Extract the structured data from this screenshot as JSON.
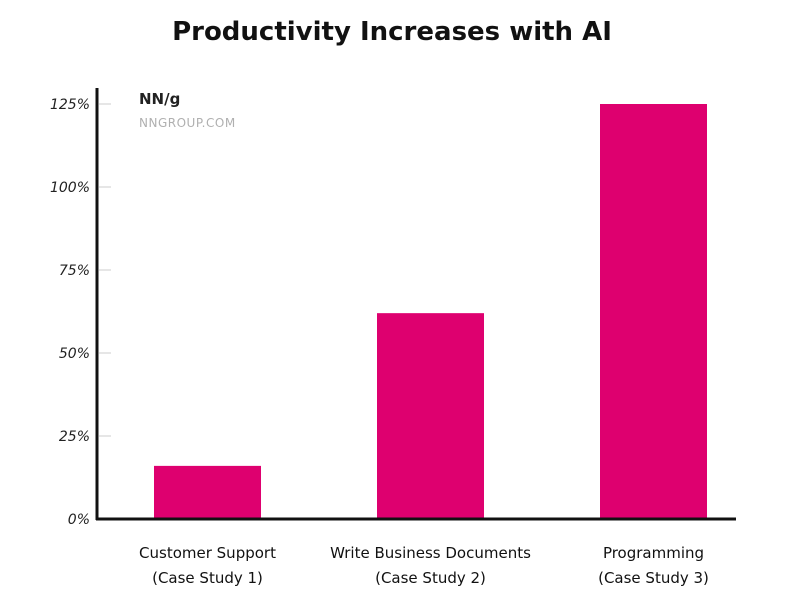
{
  "chart_data": {
    "type": "bar",
    "title": "Productivity Increases with AI",
    "categories": [
      [
        "Customer Support",
        "(Case Study 1)"
      ],
      [
        "Write Business Documents",
        "(Case Study 2)"
      ],
      [
        "Programming",
        "(Case Study 3)"
      ]
    ],
    "values": [
      16,
      62,
      125
    ],
    "ylim": [
      0,
      125
    ],
    "yticks": [
      0,
      25,
      50,
      75,
      100,
      125
    ],
    "ytick_labels": [
      "0%",
      "25%",
      "50%",
      "75%",
      "100%",
      "125%"
    ],
    "xlabel": "",
    "ylabel": "",
    "grid": false,
    "bar_color": "#DE006F"
  },
  "logo": {
    "mark": "NN/g",
    "site": "NNGROUP.COM"
  }
}
